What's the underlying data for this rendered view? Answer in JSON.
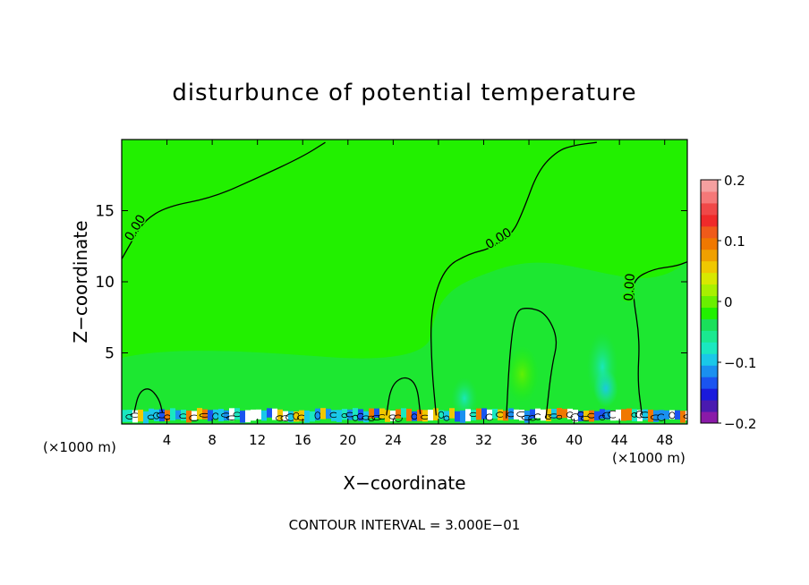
{
  "chart_data": {
    "type": "heatmap",
    "title": "disturbunce of potential temperature",
    "xlabel": "X−coordinate",
    "ylabel": "Z−coordinate",
    "x_unit": "(×1000 m)",
    "y_unit": "(×1000 m)",
    "xlim": [
      0,
      50
    ],
    "ylim": [
      0,
      20
    ],
    "x_ticks": [
      4,
      8,
      12,
      16,
      20,
      24,
      28,
      32,
      36,
      40,
      44,
      48
    ],
    "y_ticks": [
      5,
      10,
      15
    ],
    "colorbar": {
      "range": [
        -0.2,
        0.2
      ],
      "tick_values": [
        0.2,
        0.1,
        0,
        -0.1,
        -0.2
      ],
      "tick_labels": [
        "0.2",
        "0.1",
        "0",
        "−0.1",
        "−0.2"
      ],
      "colors": [
        "#8a1aa8",
        "#4a1ab0",
        "#1a1adc",
        "#1a54f0",
        "#1a90f0",
        "#1ac8e8",
        "#1ae8c0",
        "#1ae890",
        "#1ae05a",
        "#22f000",
        "#6af000",
        "#a8f000",
        "#d8e800",
        "#f0c800",
        "#f0a000",
        "#f07800",
        "#f05a1a",
        "#f02a2a",
        "#f04848",
        "#f57878",
        "#f5a0a0"
      ]
    },
    "contours": [
      {
        "label": "0.00",
        "points": [
          [
            0,
            11.6
          ],
          [
            1,
            13
          ],
          [
            2,
            14.3
          ],
          [
            4,
            15.3
          ],
          [
            8,
            15.9
          ],
          [
            12,
            17.3
          ],
          [
            16,
            18.8
          ],
          [
            18,
            19.8
          ]
        ]
      },
      {
        "label": "0.00",
        "points": [
          [
            27.8,
            0.6
          ],
          [
            27.4,
            4
          ],
          [
            27.3,
            8
          ],
          [
            28.5,
            11
          ],
          [
            30.8,
            12
          ],
          [
            32.5,
            12.3
          ],
          [
            34.5,
            13.3
          ],
          [
            35.5,
            15
          ],
          [
            36.8,
            17.8
          ],
          [
            38.5,
            19.2
          ],
          [
            40,
            19.6
          ],
          [
            42,
            19.8
          ]
        ]
      },
      {
        "label": "0.00",
        "points": [
          [
            46,
            0.6
          ],
          [
            45.6,
            3
          ],
          [
            45.8,
            6
          ],
          [
            45.2,
            9
          ],
          [
            45.3,
            10.2
          ],
          [
            47,
            10.9
          ],
          [
            49,
            11.1
          ],
          [
            50,
            11.4
          ]
        ]
      },
      {
        "label": "",
        "points": [
          [
            34,
            0.4
          ],
          [
            34.3,
            5
          ],
          [
            34.8,
            8
          ],
          [
            36,
            8.2
          ],
          [
            37.5,
            7.8
          ],
          [
            38.6,
            6
          ],
          [
            38,
            4
          ],
          [
            37.5,
            0.4
          ]
        ]
      },
      {
        "label": "",
        "points": [
          [
            1.1,
            0.8
          ],
          [
            1.5,
            2.2
          ],
          [
            2.4,
            2.6
          ],
          [
            3.3,
            1.8
          ],
          [
            3.6,
            0.8
          ]
        ]
      },
      {
        "label": "",
        "points": [
          [
            23.4,
            0.6
          ],
          [
            23.8,
            2.7
          ],
          [
            25,
            3.4
          ],
          [
            26.1,
            2.8
          ],
          [
            26.4,
            0.7
          ]
        ]
      }
    ],
    "anomalies": [
      {
        "x": 30.3,
        "z": 1.8,
        "w": 1.4,
        "h": 3.0,
        "value": -0.03
      },
      {
        "x": 35.4,
        "z": 3.5,
        "w": 2.0,
        "h": 4.0,
        "value": 0.015
      },
      {
        "x": 42.5,
        "z": 4.0,
        "w": 1.8,
        "h": 5.0,
        "value": -0.04
      },
      {
        "x": 42.8,
        "z": 2.5,
        "w": 1.2,
        "h": 2.6,
        "value": -0.08
      }
    ],
    "contour_interval_text": "CONTOUR INTERVAL = 3.000E−01"
  }
}
